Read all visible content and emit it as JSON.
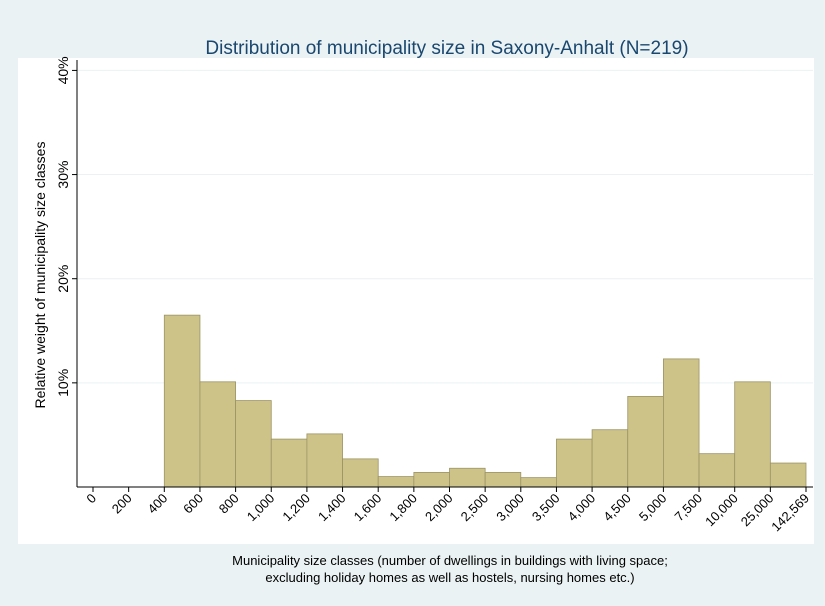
{
  "chart_data": {
    "type": "histogram",
    "title": "Distribution of municipality size in Saxony-Anhalt (N=219)",
    "ylabel": "Relative weight of municipality size classes",
    "xlabel": [
      "Municipality size classes (number of dwellings in buildings with living space;",
      "excluding holiday homes as well as hostels, nursing homes etc.)"
    ],
    "bins": [
      0,
      200,
      400,
      600,
      800,
      {
        "value": 1000,
        "label": "1,000"
      },
      {
        "value": 1200,
        "label": "1,200"
      },
      {
        "value": 1400,
        "label": "1,400"
      },
      {
        "value": 1600,
        "label": "1,600"
      },
      {
        "value": 1800,
        "label": "1,800"
      },
      {
        "value": 2000,
        "label": "2,000"
      },
      {
        "value": 2500,
        "label": "2,500"
      },
      {
        "value": 3000,
        "label": "3,000"
      },
      {
        "value": 3500,
        "label": "3,500"
      },
      {
        "value": 4000,
        "label": "4,000"
      },
      {
        "value": 4500,
        "label": "4,500"
      },
      {
        "value": 5000,
        "label": "5,000"
      },
      {
        "value": 7500,
        "label": "7,500"
      },
      {
        "value": 10000,
        "label": "10,000"
      },
      {
        "value": 25000,
        "label": "25,000"
      },
      {
        "value": 142569,
        "label": "142,569"
      }
    ],
    "values": [
      0,
      0,
      16.5,
      10.1,
      8.3,
      4.6,
      5.1,
      2.7,
      1.0,
      1.4,
      1.8,
      1.4,
      0.9,
      4.6,
      5.5,
      8.7,
      12.3,
      3.2,
      10.1,
      2.3
    ],
    "color": "#cdc388",
    "ylim": [
      0,
      41
    ],
    "yticks": [
      {
        "value": 10,
        "label": "10%"
      },
      {
        "value": 20,
        "label": "20%"
      },
      {
        "value": 30,
        "label": "30%"
      },
      {
        "value": 40,
        "label": "40%"
      }
    ],
    "grid": true
  }
}
